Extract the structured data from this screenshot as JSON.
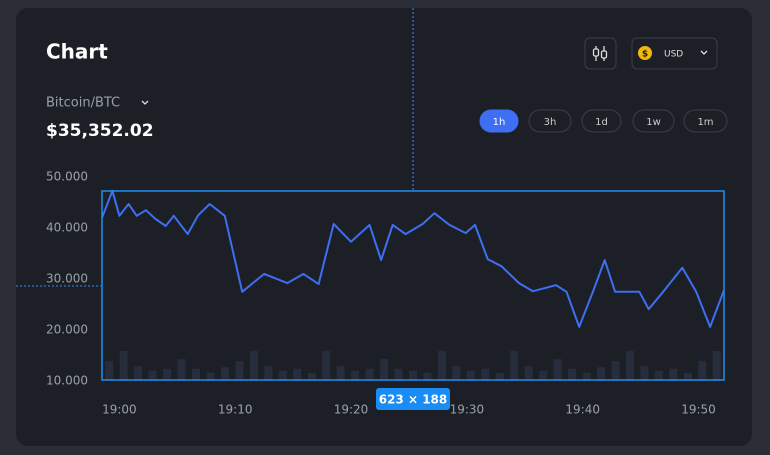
{
  "header": {
    "title": "Chart",
    "asset": "Bitcoin/BTC",
    "price": "$35,352.02",
    "currency_symbol": "$",
    "currency": "USD"
  },
  "timeframes": [
    "1h",
    "3h",
    "1d",
    "1w",
    "1m"
  ],
  "active_timeframe": "1h",
  "overlay_label": "623 × 188",
  "chart_data": {
    "type": "line",
    "x": [
      1138.5,
      1139.4,
      1140,
      1140.8,
      1141.5,
      1142.3,
      1143.1,
      1144.0,
      1144.7,
      1145.9,
      1146.8,
      1147.8,
      1149.1,
      1150.6,
      1152.5,
      1154.5,
      1155.9,
      1157.2,
      1158.5,
      1160.0,
      1161.6,
      1162.6,
      1163.6,
      1164.7,
      1166.2,
      1167.2,
      1168.5,
      1169.9,
      1170.7,
      1171.8,
      1173.0,
      1174.5,
      1175.7,
      1176.7,
      1177.7,
      1178.6,
      1179.7,
      1180.9,
      1181.9,
      1182.8,
      1184.1,
      1184.9,
      1185.7,
      1186.8,
      1188.6,
      1189.8,
      1191.0,
      1192.2
    ],
    "values": [
      42000,
      47300,
      42400,
      44700,
      42400,
      43500,
      41800,
      40400,
      42400,
      38800,
      42500,
      44700,
      42400,
      27500,
      31000,
      29200,
      31000,
      29000,
      40800,
      37300,
      40600,
      33700,
      40600,
      38800,
      40800,
      42900,
      40600,
      39000,
      40600,
      33900,
      32500,
      29200,
      27600,
      28200,
      28800,
      27500,
      20600,
      27600,
      33700,
      27500,
      27500,
      27500,
      24100,
      27100,
      32200,
      27500,
      20600,
      27800
    ],
    "color": "#3e6ff2",
    "bars": [
      13900,
      15900,
      12900,
      12000,
      12400,
      14300,
      12400,
      11600,
      12700,
      13900,
      15900,
      12900,
      12000,
      12400,
      11600,
      15900,
      12900,
      12000,
      12400,
      14300,
      12400,
      12000,
      11600,
      15900,
      12900,
      12000,
      12400,
      11600,
      15900,
      12900,
      12000,
      14300,
      12400,
      11600,
      12700,
      13900,
      15900,
      12900,
      12000,
      12400,
      11600,
      13900,
      15900
    ],
    "bar_color": "#262d3c",
    "xlim": [
      1138.5,
      1192.2
    ],
    "xticks": [
      {
        "value": 1140,
        "label": "19:00"
      },
      {
        "value": 1150,
        "label": "19:10"
      },
      {
        "value": 1160,
        "label": "19:20"
      },
      {
        "value": 1170,
        "label": "19:30"
      },
      {
        "value": 1180,
        "label": "19:40"
      },
      {
        "value": 1190,
        "label": "19:50"
      }
    ],
    "ylim": [
      10000,
      50000
    ],
    "yticks": [
      {
        "value": 50000,
        "label": "50.000"
      },
      {
        "value": 40000,
        "label": "40.000"
      },
      {
        "value": 30000,
        "label": "30.000"
      },
      {
        "value": 20000,
        "label": "20.000"
      },
      {
        "value": 10000,
        "label": "10.000"
      }
    ],
    "grid": false
  }
}
